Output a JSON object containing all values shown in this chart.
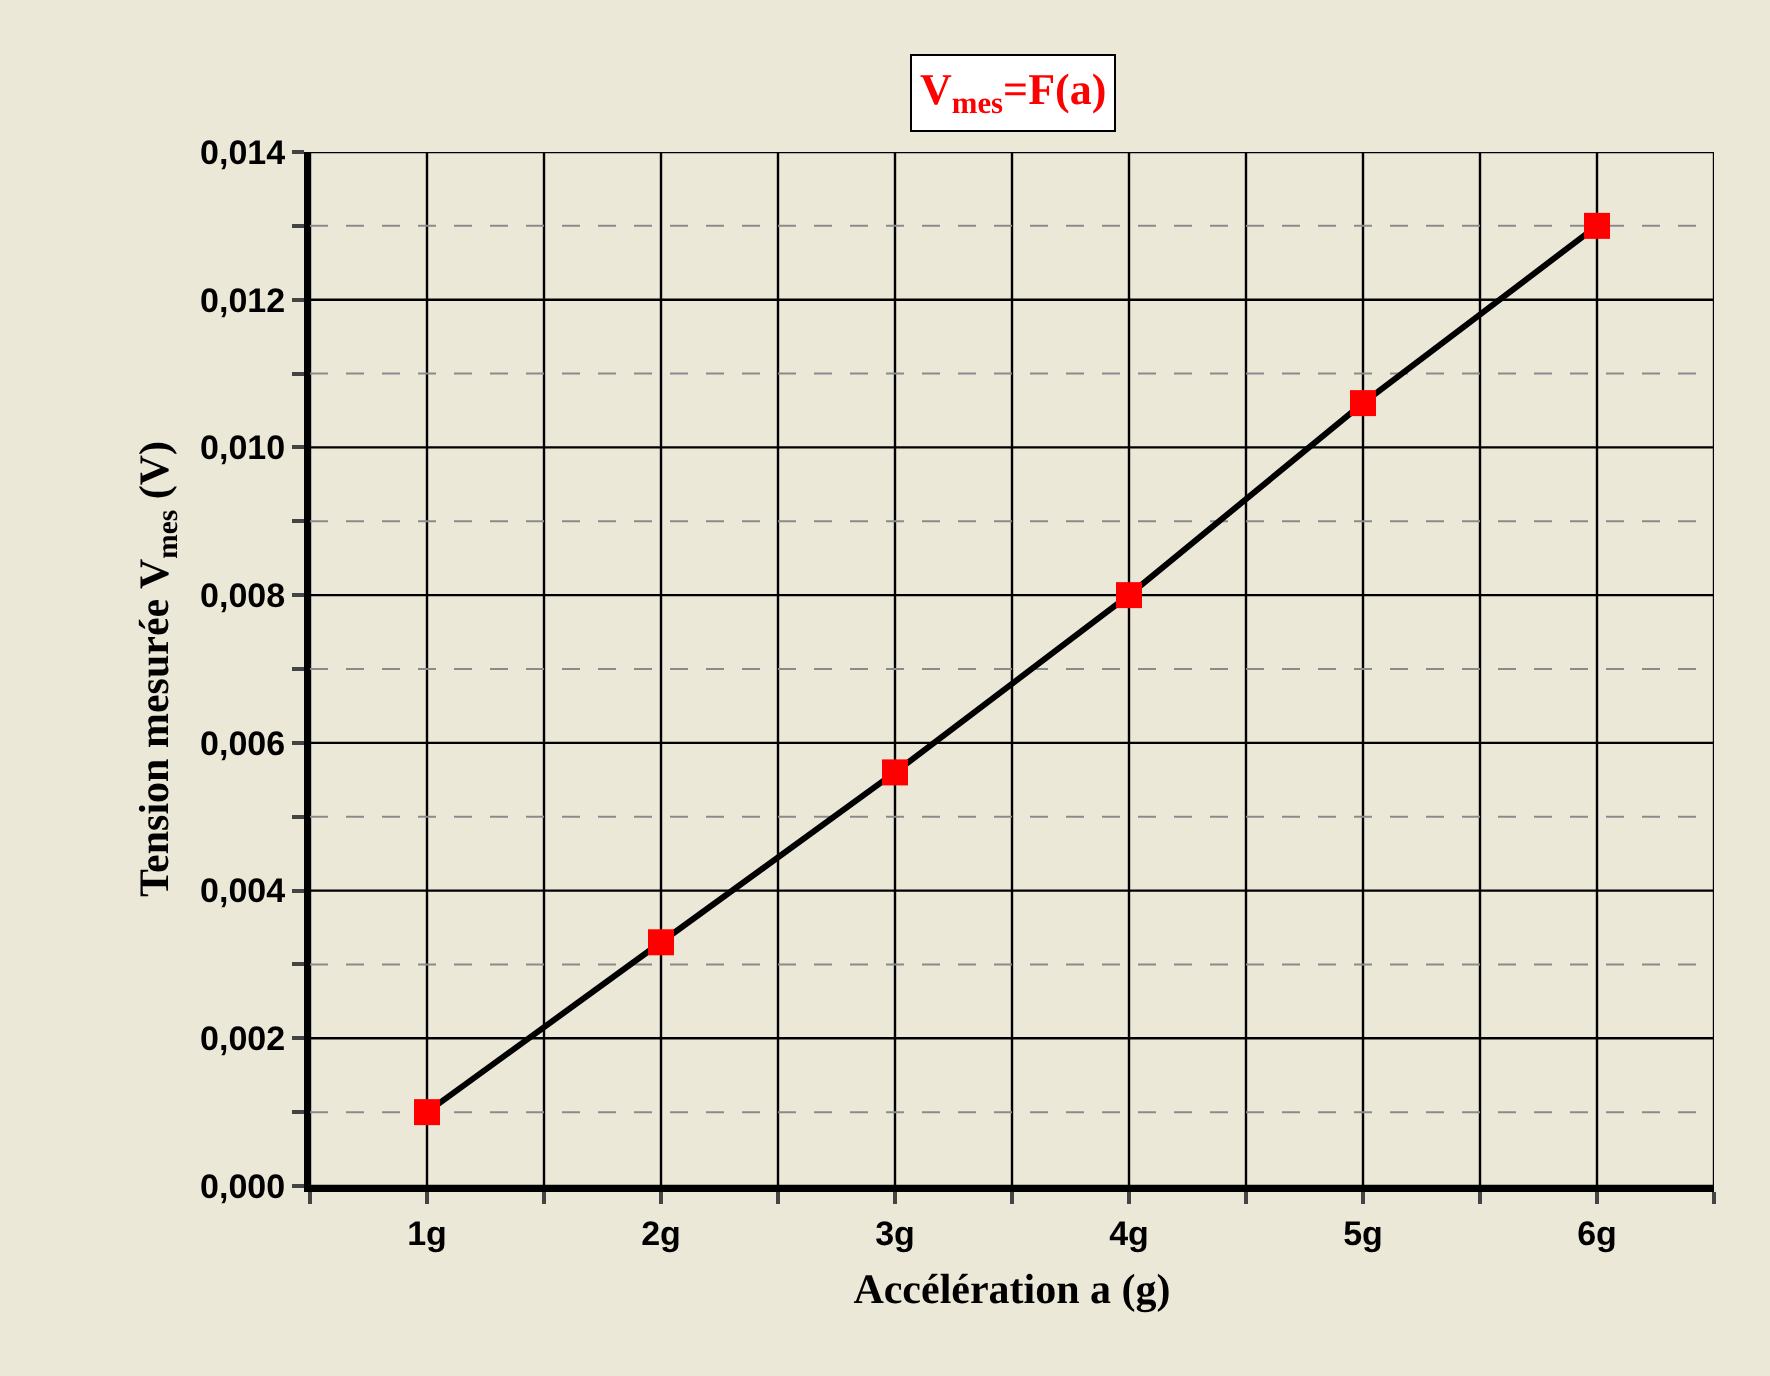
{
  "chart_data": {
    "type": "line",
    "title": "V$_{mes}$=F(a)",
    "xlabel": "Accélération a (g)",
    "ylabel": "Tension mesurée V$_{mes}$ (V)",
    "x": [
      1,
      2,
      3,
      4,
      5,
      6
    ],
    "series": [
      {
        "color": "#000000",
        "colors": [
          "#ff0000",
          "#ff0000",
          "#ff0000",
          "#ff0000",
          "#ff0000",
          "#ff0000"
        ],
        "values": [
          0.001,
          0.0033,
          0.0056,
          0.008,
          0.0106,
          0.013
        ]
      }
    ],
    "xlim": [
      0.5,
      6.5
    ],
    "xticks": [
      {
        "value": 0.5,
        "label": null
      },
      {
        "value": 1,
        "label": "1g"
      },
      {
        "value": 1.5,
        "label": null
      },
      {
        "value": 2,
        "label": "2g"
      },
      {
        "value": 2.5,
        "label": null
      },
      {
        "value": 3,
        "label": "3g"
      },
      {
        "value": 3.5,
        "label": null
      },
      {
        "value": 4,
        "label": "4g"
      },
      {
        "value": 4.5,
        "label": null
      },
      {
        "value": 5,
        "label": "5g"
      },
      {
        "value": 5.5,
        "label": null
      },
      {
        "value": 6,
        "label": "6g"
      },
      {
        "value": 6.5,
        "label": null
      }
    ],
    "ylim": [
      0,
      0.014
    ],
    "yticks": [
      {
        "value": 0,
        "label": "0,000"
      },
      {
        "value": 0.001,
        "label": null
      },
      {
        "value": 0.002,
        "label": "0,002"
      },
      {
        "value": 0.003,
        "label": null
      },
      {
        "value": 0.004,
        "label": "0,004"
      },
      {
        "value": 0.005,
        "label": null
      },
      {
        "value": 0.006,
        "label": "0,006"
      },
      {
        "value": 0.007,
        "label": null
      },
      {
        "value": 0.008,
        "label": "0,008"
      },
      {
        "value": 0.009,
        "label": null
      },
      {
        "value": 0.01,
        "label": "0,010"
      },
      {
        "value": 0.011,
        "label": null
      },
      {
        "value": 0.012,
        "label": "0,012"
      },
      {
        "value": 0.013,
        "label": null
      },
      {
        "value": 0.014,
        "label": "0,014"
      }
    ],
    "grid": true,
    "marker": "square",
    "line_style": "solid",
    "legend": false
  }
}
